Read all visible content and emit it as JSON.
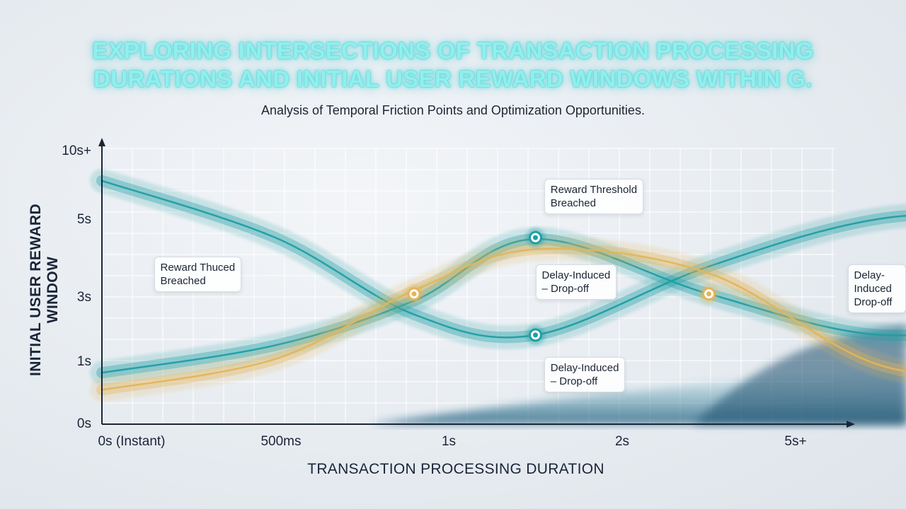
{
  "title": "EXPLORING INTERSECTIONS OF TRANSACTION PROCESSING DURATIONS AND INITIAL USER REWARD WINDOWS WITHIN G.",
  "title_lines": [
    "EXPLORING INTERSECTIONS OF TRANSACTION PROCESSING",
    "DURATIONS AND INITIAL USER REWARD WINDOWS WITHIN G."
  ],
  "subtitle": "Analysis of Temporal Friction Points and Optimization Opportunities.",
  "colors": {
    "teal": "#1f9ea3",
    "teal_dark": "#0e7f86",
    "gold": "#e2b55a",
    "title_glow": "#8ff0ee",
    "axis": "#1a2538"
  },
  "chart_data": {
    "type": "line",
    "xlabel": "TRANSACTION PROCESSING DURATION",
    "ylabel": "INITIAL USER REWARD WINDOW",
    "x_ticks": [
      "0s (Instant)",
      "500ms",
      "1s",
      "2s",
      "5s+"
    ],
    "y_ticks": [
      "0s",
      "1s",
      "3s",
      "5s",
      "10s+"
    ],
    "grid": true,
    "series": [
      {
        "color": "#1f9ea3",
        "points": [
          [
            0,
            3.55
          ],
          [
            1,
            2.72
          ],
          [
            1.8,
            1.6
          ],
          [
            2.5,
            1.3
          ],
          [
            3.5,
            2.3
          ],
          [
            4.5,
            3.0
          ],
          [
            5.5,
            3.05
          ]
        ]
      },
      {
        "color": "#1f9ea3",
        "points": [
          [
            0,
            0.75
          ],
          [
            1,
            1.15
          ],
          [
            1.8,
            1.8
          ],
          [
            2.5,
            2.7
          ],
          [
            3.5,
            1.9
          ],
          [
            4.5,
            1.3
          ],
          [
            5.5,
            1.6
          ]
        ]
      },
      {
        "color": "#e2b55a",
        "points": [
          [
            0,
            0.5
          ],
          [
            1,
            0.95
          ],
          [
            1.8,
            1.95
          ],
          [
            2.5,
            2.55
          ],
          [
            3.5,
            2.2
          ],
          [
            4.5,
            0.85
          ],
          [
            5.5,
            0.7
          ]
        ]
      }
    ],
    "markers": [
      {
        "x": 1.8,
        "y": 1.9,
        "color": "#e2b55a"
      },
      {
        "x": 2.5,
        "y": 2.72,
        "color": "#1f9ea3"
      },
      {
        "x": 2.5,
        "y": 1.3,
        "color": "#1f9ea3"
      },
      {
        "x": 3.5,
        "y": 1.9,
        "color": "#e2b55a"
      }
    ],
    "annotations": [
      {
        "text": "Reward Threshold\nBreached",
        "x": 2.55,
        "y": 3.35
      },
      {
        "text": "Reward Thuced\nBreached",
        "x": 0.3,
        "y": 2.22
      },
      {
        "text": "Delay-Induced\n– Drop-off",
        "x": 2.5,
        "y": 2.1
      },
      {
        "text": "Delay-Induced\nDrop-off",
        "x": 4.3,
        "y": 2.1
      },
      {
        "text": "Delay-Induced\n– Drop-off",
        "x": 2.55,
        "y": 0.75
      }
    ]
  }
}
